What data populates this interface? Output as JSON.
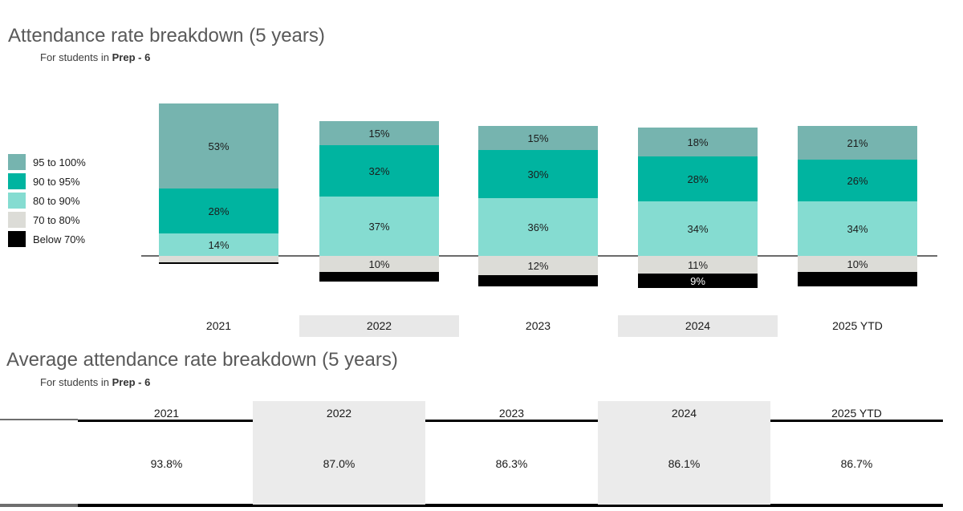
{
  "chart_section": {
    "title": "Attendance rate breakdown (5 years)",
    "subtitle_prefix": "For students in",
    "subtitle_bold": "Prep - 6"
  },
  "legend": {
    "items": [
      {
        "label": "95 to 100%",
        "color": "#76b4af"
      },
      {
        "label": "90 to 95%",
        "color": "#00b4a0"
      },
      {
        "label": "80 to 90%",
        "color": "#85dcd1"
      },
      {
        "label": "70 to 80%",
        "color": "#dcdcd7"
      },
      {
        "label": "Below 70%",
        "color": "#000000"
      }
    ]
  },
  "chart_data": {
    "type": "bar",
    "stacked": true,
    "unit": "%",
    "categories": [
      "2021",
      "2022",
      "2023",
      "2024",
      "2025 YTD"
    ],
    "highlighted_categories": [
      "2022",
      "2024"
    ],
    "baseline_between_bands": [
      "80 to 90%",
      "70 to 80%"
    ],
    "series": [
      {
        "name": "95 to 100%",
        "color": "#76b4af",
        "below_axis": false,
        "values": [
          53,
          15,
          15,
          18,
          21
        ],
        "labels": [
          "53%",
          "15%",
          "15%",
          "18%",
          "21%"
        ]
      },
      {
        "name": "90 to 95%",
        "color": "#00b4a0",
        "below_axis": false,
        "values": [
          28,
          32,
          30,
          28,
          26
        ],
        "labels": [
          "28%",
          "32%",
          "30%",
          "28%",
          "26%"
        ]
      },
      {
        "name": "80 to 90%",
        "color": "#85dcd1",
        "below_axis": false,
        "values": [
          14,
          37,
          36,
          34,
          34
        ],
        "labels": [
          "14%",
          "37%",
          "36%",
          "34%",
          "34%"
        ]
      },
      {
        "name": "70 to 80%",
        "color": "#dcdcd7",
        "below_axis": true,
        "values": [
          4,
          10,
          12,
          11,
          10
        ],
        "labels": [
          "",
          "10%",
          "12%",
          "11%",
          "10%"
        ]
      },
      {
        "name": "Below 70%",
        "color": "#000000",
        "below_axis": true,
        "label_color": "#ffffff",
        "values": [
          1,
          6,
          7,
          9,
          9
        ],
        "labels": [
          "",
          "",
          "",
          "9%",
          ""
        ]
      }
    ]
  },
  "table_section": {
    "title": "Average attendance rate breakdown (5 years)",
    "subtitle_prefix": "For students in",
    "subtitle_bold": "Prep - 6",
    "columns": [
      "2021",
      "2022",
      "2023",
      "2024",
      "2025 YTD"
    ],
    "values": [
      "93.8%",
      "87.0%",
      "86.3%",
      "86.1%",
      "86.7%"
    ],
    "highlighted_columns": [
      "2022",
      "2024"
    ]
  },
  "colors": {
    "title_text": "#595959",
    "subtitle_text": "#3d3d3d",
    "segment_label": "#1c1c1c",
    "black_segment_label": "#ffffff",
    "category_highlight_bg": "#e8e8e8",
    "table_highlight_bg": "#ebebeb",
    "axis_line": "#6b6b6b",
    "table_rule_black": "#000000",
    "table_rule_gray": "#6e6e6e"
  }
}
